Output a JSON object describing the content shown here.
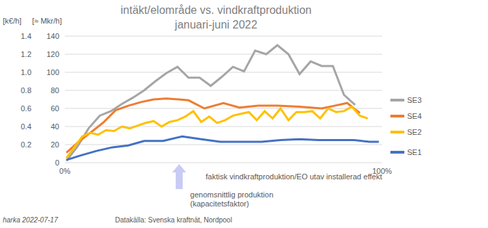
{
  "chart_data": {
    "type": "line",
    "title": [
      "intäkt/elområde vs. vindkraftproduktion",
      "januari-juni 2022"
    ],
    "x_label": "faktisk vindkraftproduktion/EO utav installerad effekt",
    "y_label": "[k€/h]",
    "y2_label": "[≈ Mkr/h]",
    "xlim": [
      0,
      100
    ],
    "xticks": [
      {
        "value": 0,
        "label": "0%"
      },
      {
        "value": 100,
        "label": "100%"
      }
    ],
    "ylim": [
      0,
      140
    ],
    "yticks": [
      0,
      20,
      40,
      60,
      80,
      100,
      120,
      140
    ],
    "y2lim": [
      0,
      1.4
    ],
    "y2ticks": [
      0.2,
      0.4,
      0.6,
      0.8,
      {
        "value": 1,
        "label": "1.0"
      },
      1.2,
      1.4
    ],
    "grid": true,
    "legend": "right",
    "series": [
      {
        "name": "SE3",
        "color": "#a5a5a5",
        "x": [
          0.5,
          4,
          7.5,
          11,
          14.5,
          18,
          21.5,
          25,
          28.5,
          32,
          35.5,
          39,
          42.5,
          46,
          49.5,
          53,
          56.5,
          60,
          63.5,
          67,
          70.5,
          74,
          77.5,
          81,
          84.5,
          88,
          91.5
        ],
        "values": [
          2,
          18,
          38,
          52,
          57,
          65,
          72,
          80,
          90,
          99,
          106,
          94,
          94,
          85,
          95,
          106,
          101,
          124,
          120,
          130,
          120,
          98,
          112,
          107,
          107,
          75,
          64
        ]
      },
      {
        "name": "SE4",
        "color": "#ed7d31",
        "x": [
          0.5,
          4,
          8,
          12,
          16,
          20,
          24,
          28,
          32,
          36,
          39,
          44,
          50,
          55,
          61,
          67,
          74,
          81,
          85,
          89,
          93
        ],
        "values": [
          11,
          22,
          33,
          44,
          58,
          63,
          67,
          70,
          71,
          70,
          69,
          60,
          66,
          61,
          63,
          63,
          62,
          60,
          63,
          66,
          55
        ]
      },
      {
        "name": "SE2",
        "color": "#ffc000",
        "x": [
          0.5,
          3,
          5.5,
          8,
          10.5,
          13,
          15.5,
          18,
          20.5,
          23,
          25.5,
          28,
          30.5,
          33,
          35.5,
          38,
          40.5,
          43,
          45.5,
          48,
          50.5,
          53,
          55.5,
          58,
          60.5,
          63,
          65.5,
          68,
          70.5,
          73,
          75.5,
          78,
          80.5,
          83,
          85.5,
          88,
          90.5,
          93,
          95.5
        ],
        "values": [
          5,
          17,
          29,
          33,
          31,
          36,
          35,
          40,
          38,
          41,
          44,
          46,
          40,
          45,
          47,
          51,
          57,
          45,
          51,
          44,
          47,
          52,
          54,
          56,
          47,
          57,
          49,
          60,
          47,
          56,
          56,
          57,
          49,
          60,
          56,
          57,
          62,
          52,
          49
        ]
      },
      {
        "name": "SE1",
        "color": "#4472c4",
        "x": [
          0.5,
          5,
          10,
          15,
          20,
          25,
          31,
          37,
          43,
          49,
          55,
          62,
          68,
          74,
          80,
          86,
          91,
          96,
          99
        ],
        "values": [
          3,
          8,
          13,
          17,
          19,
          24,
          24,
          29,
          26,
          23,
          23,
          23,
          25,
          26,
          25,
          25,
          25,
          23,
          23
        ]
      }
    ],
    "annotations": [
      {
        "lines": [
          "genomsnittlig produktion",
          "(kapacitetsfaktor)"
        ],
        "x": 36
      }
    ],
    "footer": [
      "harka 2022-07-17",
      "Datakälla: Svenska kraftnät, Nordpool"
    ]
  }
}
